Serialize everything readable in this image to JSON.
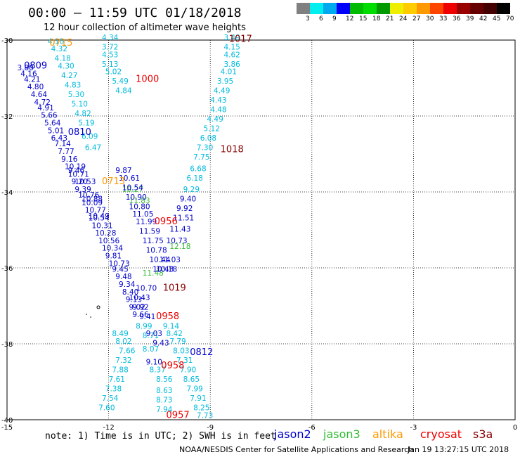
{
  "title": "00:00 – 11:59 UTC 01/18/2018",
  "subtitle": "12 hour collection of altimeter wave heights",
  "note": "note: 1) Time is in UTC; 2) SWH is in feet",
  "satellites": [
    {
      "name": "jason2",
      "color": "#0000cc"
    },
    {
      "name": "jason3",
      "color": "#33bb33"
    },
    {
      "name": "altika",
      "color": "#ff9900"
    },
    {
      "name": "cryosat",
      "color": "#ee0000"
    },
    {
      "name": "s3a",
      "color": "#880000"
    }
  ],
  "footer_left": "NOAA/NESDIS Center for Satellite Applications and Research",
  "footer_right": "Jan 19 13:27:15 UTC 2018",
  "scale": {
    "colors": [
      "#808080",
      "#00eeee",
      "#00aaee",
      "#0000ff",
      "#00bb00",
      "#00dd00",
      "#009900",
      "#eeee00",
      "#ffcc00",
      "#ff9900",
      "#ff4400",
      "#ee0000",
      "#990000",
      "#660000",
      "#440000",
      "#000000"
    ],
    "labels": [
      "3",
      "6",
      "9",
      "12",
      "15",
      "18",
      "21",
      "24",
      "27",
      "30",
      "33",
      "36",
      "39",
      "42",
      "45",
      "70",
      "(ft)"
    ]
  },
  "chart_data": {
    "type": "scatter",
    "xlim": [
      -15,
      0
    ],
    "ylim": [
      -40,
      -30
    ],
    "x_ticks": [
      "-15",
      "-12",
      "-9",
      "-6",
      "-3",
      "0"
    ],
    "y_ticks": [
      "-30",
      "-32",
      "-34",
      "-36",
      "-38",
      "-40"
    ],
    "grid": true,
    "time_labels": [
      {
        "text": "0715",
        "lon": -13.75,
        "lat": -30.15,
        "color": "#ff9900"
      },
      {
        "text": "0809",
        "lon": -14.5,
        "lat": -30.75,
        "color": "#0000cc"
      },
      {
        "text": "1000",
        "lon": -11.2,
        "lat": -31.1,
        "color": "#ee0000"
      },
      {
        "text": "1017",
        "lon": -8.45,
        "lat": -30.05,
        "color": "#880000"
      },
      {
        "text": "0810",
        "lon": -13.2,
        "lat": -32.5,
        "color": "#0000cc"
      },
      {
        "text": "1018",
        "lon": -8.7,
        "lat": -32.95,
        "color": "#880000"
      },
      {
        "text": "0713",
        "lon": -12.2,
        "lat": -33.8,
        "color": "#ff9900"
      },
      {
        "text": "0956",
        "lon": -10.65,
        "lat": -34.85,
        "color": "#ee0000"
      },
      {
        "text": "1019",
        "lon": -10.4,
        "lat": -36.6,
        "color": "#880000"
      },
      {
        "text": "0958",
        "lon": -10.6,
        "lat": -37.35,
        "color": "#ee0000"
      },
      {
        "text": "0812",
        "lon": -9.6,
        "lat": -38.3,
        "color": "#0000cc"
      },
      {
        "text": "0958",
        "lon": -10.45,
        "lat": -38.65,
        "color": "#ee0000"
      },
      {
        "text": "0957",
        "lon": -10.3,
        "lat": -39.95,
        "color": "#ee0000"
      }
    ],
    "series": [
      {
        "name": "jason2",
        "points": [
          [
            -14.7,
            -30.8,
            "3.80"
          ],
          [
            -14.6,
            -30.95,
            "4.16"
          ],
          [
            -14.5,
            -31.1,
            "4.21"
          ],
          [
            -14.4,
            -31.3,
            "4.80"
          ],
          [
            -14.3,
            -31.5,
            "4.64"
          ],
          [
            -14.2,
            -31.7,
            "4.72"
          ],
          [
            -14.1,
            -31.85,
            "4.91"
          ],
          [
            -14.0,
            -32.05,
            "5.66"
          ],
          [
            -13.9,
            -32.25,
            "5.64"
          ],
          [
            -13.8,
            -32.45,
            "5.01"
          ],
          [
            -13.7,
            -32.65,
            "6.43"
          ],
          [
            -13.6,
            -32.8,
            "7.14"
          ],
          [
            -13.5,
            -33.0,
            "7.77"
          ],
          [
            -13.4,
            -33.2,
            "9.16"
          ],
          [
            -13.3,
            -33.4,
            "10.19"
          ],
          [
            -13.2,
            -33.6,
            "10.71"
          ],
          [
            -13.1,
            -33.8,
            "9.20"
          ],
          [
            -13.0,
            -34.0,
            "9.39"
          ],
          [
            -12.9,
            -34.15,
            "10.76"
          ],
          [
            -12.8,
            -34.35,
            "10.09"
          ],
          [
            -12.7,
            -34.55,
            "10.77"
          ],
          [
            -12.6,
            -34.75,
            "10.54"
          ],
          [
            -12.5,
            -34.95,
            "10.31"
          ],
          [
            -12.4,
            -35.15,
            "10.28"
          ],
          [
            -12.3,
            -35.35,
            "10.56"
          ],
          [
            -12.2,
            -35.55,
            "10.34"
          ],
          [
            -12.1,
            -35.75,
            "9.81"
          ],
          [
            -12.0,
            -35.95,
            "10.73"
          ],
          [
            -11.9,
            -36.1,
            "9.45"
          ],
          [
            -11.8,
            -36.3,
            "9.48"
          ],
          [
            -11.7,
            -36.5,
            "9.34"
          ],
          [
            -11.6,
            -36.7,
            "8.40"
          ],
          [
            -11.5,
            -36.9,
            "9.13"
          ],
          [
            -11.4,
            -37.1,
            "9.02"
          ],
          [
            -11.3,
            -37.3,
            "9.66"
          ],
          [
            -13.2,
            -33.5,
            "9.46"
          ],
          [
            -13.0,
            -33.8,
            "10.53"
          ],
          [
            -12.8,
            -34.25,
            "10.88"
          ],
          [
            -12.6,
            -34.7,
            "10.49"
          ]
        ]
      },
      {
        "name": "jason3",
        "points": [
          [
            -11.6,
            -34.0,
            "10.27"
          ],
          [
            -11.4,
            -34.3,
            "11.83"
          ],
          [
            -10.2,
            -35.5,
            "12.18"
          ],
          [
            -11.0,
            -36.2,
            "11.48"
          ]
        ]
      },
      {
        "name": "s3a_cyan",
        "points": [
          [
            -13.8,
            -30.1,
            "4.10"
          ],
          [
            -13.7,
            -30.3,
            "4.32"
          ],
          [
            -13.6,
            -30.55,
            "4.18"
          ],
          [
            -13.5,
            -30.75,
            "4.30"
          ],
          [
            -13.4,
            -31.0,
            "4.27"
          ],
          [
            -13.3,
            -31.25,
            "4.83"
          ],
          [
            -13.2,
            -31.5,
            "5.30"
          ],
          [
            -13.1,
            -31.75,
            "5.10"
          ],
          [
            -13.0,
            -32.0,
            "4.82"
          ],
          [
            -12.9,
            -32.25,
            "5.19"
          ],
          [
            -12.8,
            -32.6,
            "6.09"
          ],
          [
            -12.7,
            -32.9,
            "6.47"
          ],
          [
            -12.2,
            -30.0,
            "4.34"
          ],
          [
            -12.2,
            -30.25,
            "3.72"
          ],
          [
            -12.2,
            -30.45,
            "4.53"
          ],
          [
            -12.2,
            -30.7,
            "5.13"
          ],
          [
            -12.1,
            -30.9,
            "5.02"
          ],
          [
            -11.9,
            -31.15,
            "5.49"
          ],
          [
            -11.8,
            -31.4,
            "4.84"
          ],
          [
            -8.6,
            -30.0,
            "3.49"
          ],
          [
            -8.6,
            -30.25,
            "4.15"
          ],
          [
            -8.6,
            -30.45,
            "4.62"
          ],
          [
            -8.6,
            -30.7,
            "3.86"
          ],
          [
            -8.7,
            -30.9,
            "4.01"
          ],
          [
            -8.8,
            -31.15,
            "3.95"
          ],
          [
            -8.9,
            -31.4,
            "4.49"
          ],
          [
            -9.0,
            -31.65,
            "4.43"
          ],
          [
            -9.0,
            -31.9,
            "4.48"
          ],
          [
            -9.1,
            -32.15,
            "4.49"
          ],
          [
            -9.2,
            -32.4,
            "5.12"
          ],
          [
            -9.3,
            -32.65,
            "6.08"
          ],
          [
            -9.4,
            -32.9,
            "7.30"
          ],
          [
            -9.5,
            -33.15,
            "7.75"
          ],
          [
            -9.6,
            -33.45,
            "6.68"
          ],
          [
            -9.7,
            -33.7,
            "6.18"
          ],
          [
            -9.8,
            -34.0,
            "9.29"
          ]
        ]
      },
      {
        "name": "s3a_blue",
        "points": [
          [
            -9.9,
            -34.25,
            "9.40"
          ],
          [
            -10.0,
            -34.5,
            "9.92"
          ],
          [
            -10.1,
            -34.75,
            "11.51"
          ],
          [
            -10.2,
            -35.05,
            "11.43"
          ],
          [
            -10.3,
            -35.35,
            "10.73"
          ],
          [
            -10.5,
            -35.85,
            "11.03"
          ],
          [
            -10.6,
            -36.1,
            "10.18"
          ],
          [
            -11.8,
            -33.5,
            "9.87"
          ],
          [
            -11.7,
            -33.7,
            "10.61"
          ],
          [
            -11.6,
            -33.95,
            "10.54"
          ],
          [
            -11.5,
            -34.2,
            "10.90"
          ],
          [
            -11.4,
            -34.45,
            "10.80"
          ],
          [
            -11.3,
            -34.65,
            "11.05"
          ],
          [
            -11.2,
            -34.85,
            "11.99"
          ],
          [
            -11.1,
            -35.1,
            "11.59"
          ],
          [
            -11.0,
            -35.35,
            "11.75"
          ],
          [
            -10.9,
            -35.6,
            "10.78"
          ],
          [
            -10.8,
            -35.85,
            "10.44"
          ],
          [
            -10.7,
            -36.1,
            "10.43"
          ]
        ]
      },
      {
        "name": "south_cyan",
        "points": [
          [
            -11.9,
            -37.8,
            "8.49"
          ],
          [
            -11.8,
            -38.0,
            "8.02"
          ],
          [
            -11.7,
            -38.25,
            "7.66"
          ],
          [
            -11.8,
            -38.5,
            "7.32"
          ],
          [
            -11.9,
            -38.75,
            "7.88"
          ],
          [
            -12.0,
            -39.0,
            "7.61"
          ],
          [
            -12.1,
            -39.25,
            "7.38"
          ],
          [
            -12.2,
            -39.5,
            "7.54"
          ],
          [
            -12.3,
            -39.75,
            "7.60"
          ],
          [
            -10.4,
            -37.6,
            "9.14"
          ],
          [
            -10.3,
            -37.8,
            "8.42"
          ],
          [
            -10.2,
            -38.0,
            "7.79"
          ],
          [
            -10.1,
            -38.25,
            "8.03"
          ],
          [
            -10.0,
            -38.5,
            "7.31"
          ],
          [
            -9.9,
            -38.75,
            "7.90"
          ],
          [
            -9.8,
            -39.0,
            "8.65"
          ],
          [
            -9.7,
            -39.25,
            "7.99"
          ],
          [
            -9.6,
            -39.5,
            "7.91"
          ],
          [
            -9.5,
            -39.75,
            "8.25"
          ],
          [
            -9.4,
            -39.95,
            "7.73"
          ],
          [
            -11.2,
            -37.6,
            "8.99"
          ],
          [
            -11.0,
            -37.85,
            "8.71"
          ],
          [
            -11.0,
            -38.2,
            "8.07"
          ],
          [
            -10.8,
            -38.75,
            "8.37"
          ],
          [
            -10.6,
            -39.0,
            "8.56"
          ],
          [
            -10.6,
            -39.3,
            "8.63"
          ],
          [
            -10.6,
            -39.55,
            "8.73"
          ],
          [
            -10.6,
            -39.8,
            "7.94"
          ]
        ]
      },
      {
        "name": "south_blue",
        "points": [
          [
            -10.9,
            -37.8,
            "9.03"
          ],
          [
            -10.7,
            -38.05,
            "9.43"
          ],
          [
            -10.9,
            -38.55,
            "9.10"
          ],
          [
            -11.2,
            -36.6,
            "10.70"
          ],
          [
            -11.4,
            -36.85,
            "10.43"
          ],
          [
            -11.3,
            -37.1,
            "9.92"
          ],
          [
            -11.1,
            -37.35,
            "9.41"
          ]
        ]
      }
    ]
  }
}
